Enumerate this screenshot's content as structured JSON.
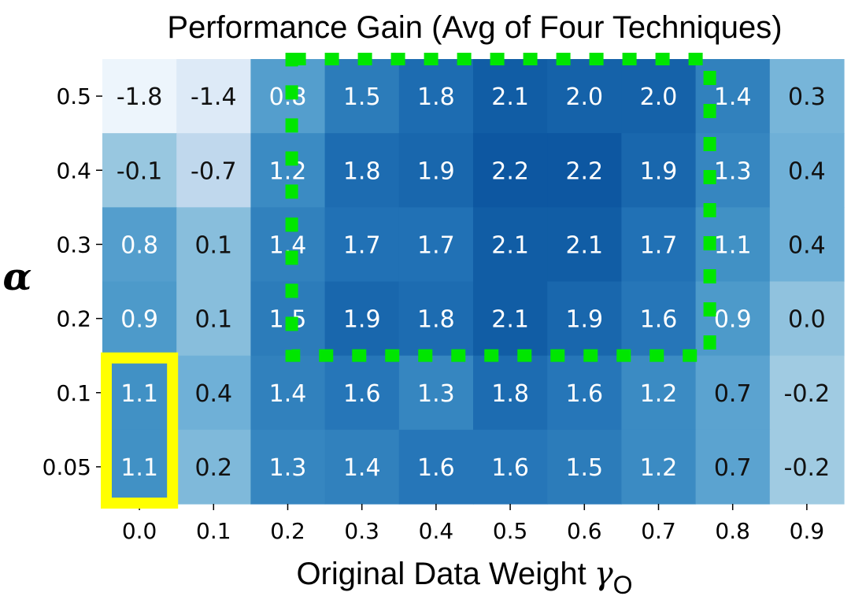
{
  "chart_data": {
    "type": "heatmap",
    "title": "Performance Gain (Avg of Four Techniques)",
    "xlabel": "Original Data Weight",
    "xlabel_symbol": "γ",
    "xlabel_subscript": "O",
    "ylabel": "α",
    "x_categories": [
      "0.0",
      "0.1",
      "0.2",
      "0.3",
      "0.4",
      "0.5",
      "0.6",
      "0.7",
      "0.8",
      "0.9"
    ],
    "y_categories": [
      "0.5",
      "0.4",
      "0.3",
      "0.2",
      "0.1",
      "0.05"
    ],
    "values": [
      [
        -1.8,
        -1.4,
        0.8,
        1.5,
        1.8,
        2.1,
        2.0,
        2.0,
        1.4,
        0.3
      ],
      [
        -0.1,
        -0.7,
        1.2,
        1.8,
        1.9,
        2.2,
        2.2,
        1.9,
        1.3,
        0.4
      ],
      [
        0.8,
        0.1,
        1.4,
        1.7,
        1.7,
        2.1,
        2.1,
        1.7,
        1.1,
        0.4
      ],
      [
        0.9,
        0.1,
        1.5,
        1.9,
        1.8,
        2.1,
        1.9,
        1.6,
        0.9,
        0.0
      ],
      [
        1.1,
        0.4,
        1.4,
        1.6,
        1.3,
        1.8,
        1.6,
        1.2,
        0.7,
        -0.2
      ],
      [
        1.1,
        0.2,
        1.3,
        1.4,
        1.6,
        1.6,
        1.5,
        1.2,
        0.7,
        -0.2
      ]
    ],
    "colormap": "Blues",
    "vmin": -1.8,
    "vmax": 2.2,
    "grid": false,
    "legend": "none",
    "highlights": [
      {
        "color": "#ffff00",
        "style": "solid",
        "x_range": [
          "0.0",
          "0.0"
        ],
        "y_range": [
          "0.1",
          "0.05"
        ]
      },
      {
        "color": "#00e600",
        "style": "dotted",
        "x_range": [
          "0.3",
          "0.7"
        ],
        "y_range": [
          "0.5",
          "0.2"
        ]
      }
    ]
  }
}
